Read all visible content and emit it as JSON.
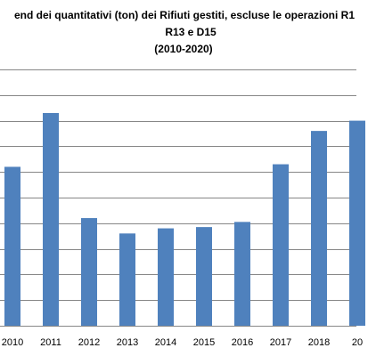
{
  "chart_data": {
    "type": "bar",
    "title": "end dei quantitativi (ton) dei Rifiuti gestiti, escluse le operazioni R1",
    "subtitle": "R13 e D15",
    "period": "(2010-2020)",
    "categories": [
      "2010",
      "2011",
      "2012",
      "2013",
      "2014",
      "2015",
      "2016",
      "2017",
      "2018",
      "20"
    ],
    "values": [
      6.2,
      8.3,
      4.2,
      3.6,
      3.8,
      3.85,
      4.05,
      6.3,
      7.6,
      8.0
    ],
    "ylim": [
      0,
      10
    ],
    "y_gridlines": [
      0,
      1,
      2,
      3,
      4,
      5,
      6,
      7,
      8,
      9,
      10
    ],
    "grid": true,
    "legend": "none",
    "bar_color": "#4F81BD",
    "grid_color": "#878787"
  }
}
